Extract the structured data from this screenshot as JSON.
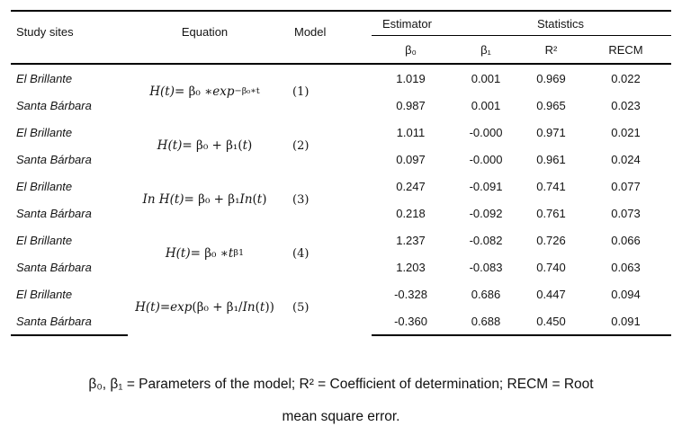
{
  "colors": {
    "background": "#ffffff",
    "text": "#141414",
    "rule": "#000000"
  },
  "header": {
    "study_sites": "Study sites",
    "equation": "Equation",
    "model": "Model",
    "estimator": "Estimator",
    "statistics": "Statistics",
    "beta0": "β₀",
    "beta1": "β₁",
    "r2": "R²",
    "recm": "RECM"
  },
  "groups": [
    {
      "model": "(1)",
      "equation_tokens": [
        {
          "s": "i",
          "t": "H(t)"
        },
        {
          "s": "n",
          "t": " = β₀ ∗ "
        },
        {
          "s": "i",
          "t": "exp"
        },
        {
          "s": "sup",
          "t": "−β₀∗t"
        }
      ],
      "rows": [
        {
          "site": "El Brillante",
          "values": [
            "1.019",
            "0.001",
            "0.969",
            "0.022"
          ]
        },
        {
          "site": "Santa Bárbara",
          "values": [
            "0.987",
            "0.001",
            "0.965",
            "0.023"
          ]
        }
      ]
    },
    {
      "model": "(2)",
      "equation_tokens": [
        {
          "s": "i",
          "t": "H(t)"
        },
        {
          "s": "n",
          "t": " = β₀ + β₁("
        },
        {
          "s": "i",
          "t": "t"
        },
        {
          "s": "n",
          "t": ")"
        }
      ],
      "rows": [
        {
          "site": "El Brillante",
          "values": [
            "1.011",
            "-0.000",
            "0.971",
            "0.021"
          ]
        },
        {
          "site": "Santa Bárbara",
          "values": [
            "0.097",
            "-0.000",
            "0.961",
            "0.024"
          ]
        }
      ]
    },
    {
      "model": "(3)",
      "equation_tokens": [
        {
          "s": "i",
          "t": "In H(t)"
        },
        {
          "s": "n",
          "t": " = β₀ + β₁"
        },
        {
          "s": "i",
          "t": "In"
        },
        {
          "s": "n",
          "t": "("
        },
        {
          "s": "i",
          "t": "t"
        },
        {
          "s": "n",
          "t": ")"
        }
      ],
      "rows": [
        {
          "site": "El Brillante",
          "values": [
            "0.247",
            "-0.091",
            "0.741",
            "0.077"
          ]
        },
        {
          "site": "Santa Bárbara",
          "values": [
            "0.218",
            "-0.092",
            "0.761",
            "0.073"
          ]
        }
      ]
    },
    {
      "model": "(4)",
      "equation_tokens": [
        {
          "s": "i",
          "t": "H(t)"
        },
        {
          "s": "n",
          "t": " = β₀ ∗ "
        },
        {
          "s": "i",
          "t": "t"
        },
        {
          "s": "sup",
          "t": "β1"
        }
      ],
      "rows": [
        {
          "site": "El Brillante",
          "values": [
            "1.237",
            "-0.082",
            "0.726",
            "0.066"
          ]
        },
        {
          "site": "Santa Bárbara",
          "values": [
            "1.203",
            "-0.083",
            "0.740",
            "0.063"
          ]
        }
      ]
    },
    {
      "model": "(5)",
      "equation_tokens": [
        {
          "s": "i",
          "t": "H(t)"
        },
        {
          "s": "n",
          "t": " = "
        },
        {
          "s": "i",
          "t": "exp"
        },
        {
          "s": "n",
          "t": "(β₀ + β₁/"
        },
        {
          "s": "i",
          "t": "In"
        },
        {
          "s": "n",
          "t": "("
        },
        {
          "s": "i",
          "t": "t"
        },
        {
          "s": "n",
          "t": "))"
        }
      ],
      "rows": [
        {
          "site": "El Brillante",
          "values": [
            "-0.328",
            "0.686",
            "0.447",
            "0.094"
          ]
        },
        {
          "site": "Santa Bárbara",
          "values": [
            "-0.360",
            "0.688",
            "0.450",
            "0.091"
          ]
        }
      ]
    }
  ],
  "footnote": {
    "line1": "β₀, β₁ = Parameters of the model; R² = Coefficient of determination; RECM = Root",
    "line2": "mean square error."
  }
}
